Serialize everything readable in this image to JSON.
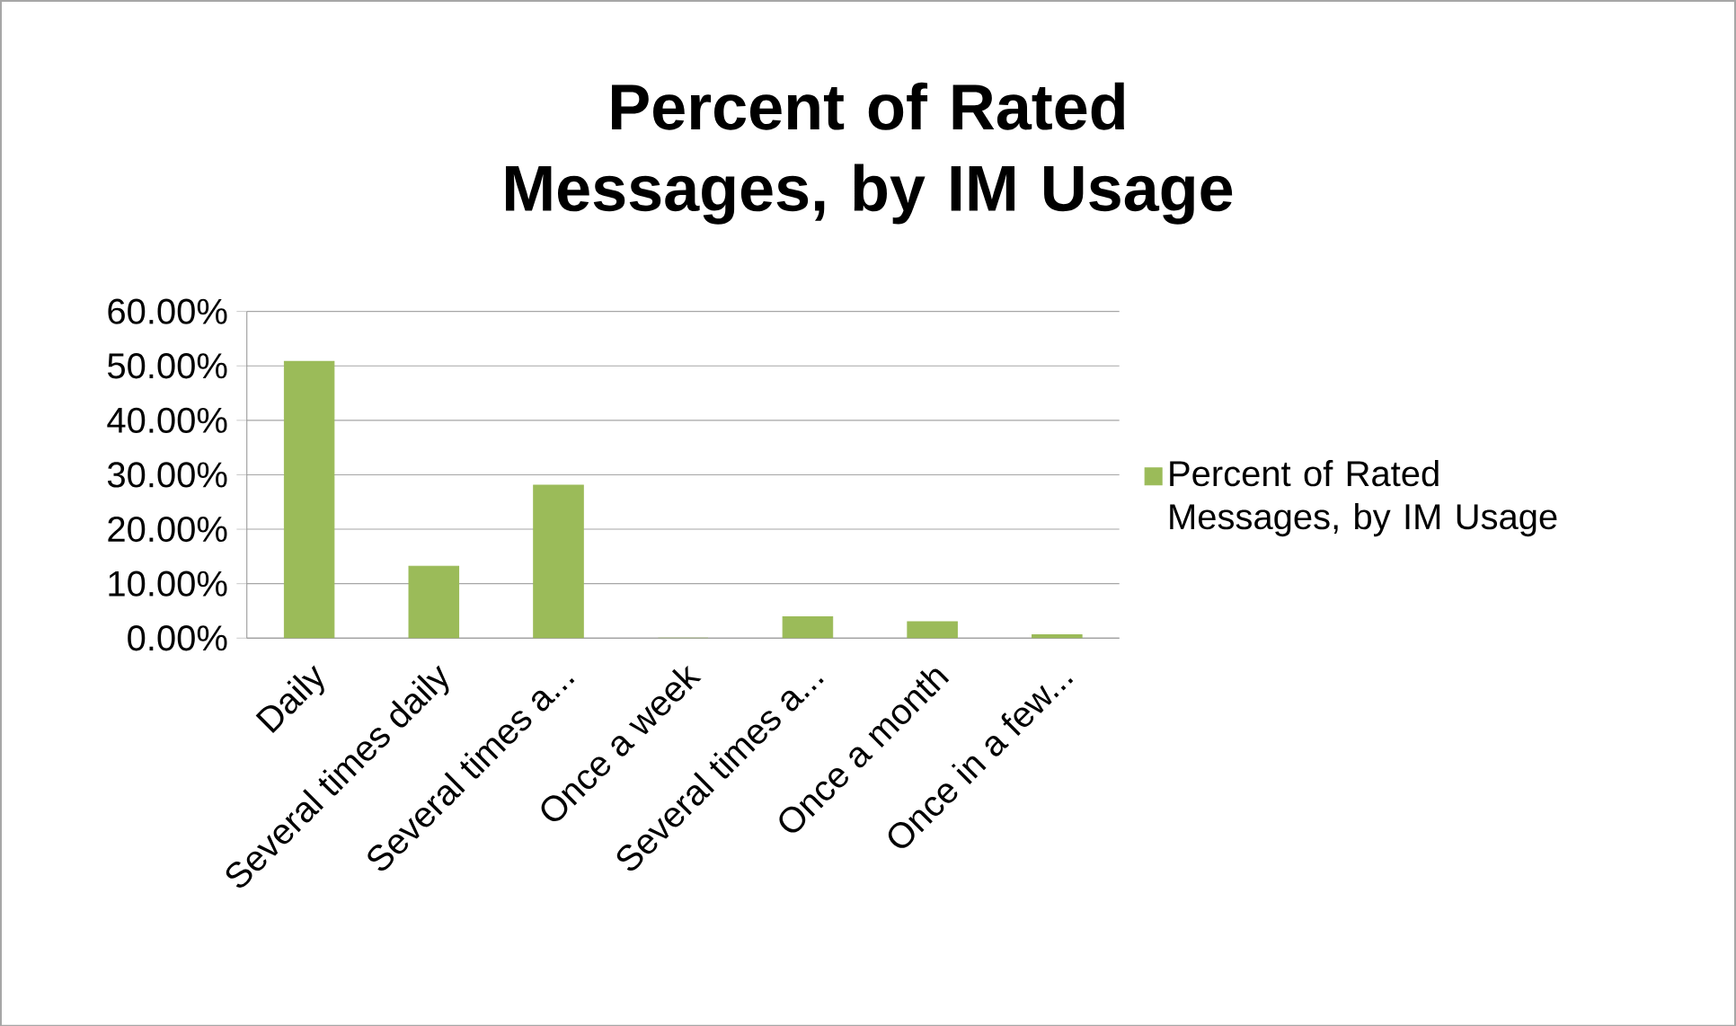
{
  "chart_data": {
    "type": "bar",
    "title": "Percent of Rated Messages, by IM Usage",
    "categories": [
      "Daily",
      "Several times daily",
      "Several times a...",
      "Once a week",
      "Several times a...",
      "Once a month",
      "Once in a few..."
    ],
    "series": [
      {
        "name": "Percent of Rated Messages, by IM Usage",
        "color": "#9bbb59",
        "values": [
          50.8,
          13.2,
          28.1,
          0,
          3.9,
          3.0,
          0.6
        ]
      }
    ],
    "ylim": [
      0,
      60
    ],
    "yticks": [
      {
        "value": 0,
        "label": "0.00%"
      },
      {
        "value": 10,
        "label": "10.00%"
      },
      {
        "value": 20,
        "label": "20.00%"
      },
      {
        "value": 30,
        "label": "30.00%"
      },
      {
        "value": 40,
        "label": "40.00%"
      },
      {
        "value": 50,
        "label": "50.00%"
      },
      {
        "value": 60,
        "label": "60.00%"
      }
    ],
    "grid": "y",
    "legend": "right"
  }
}
